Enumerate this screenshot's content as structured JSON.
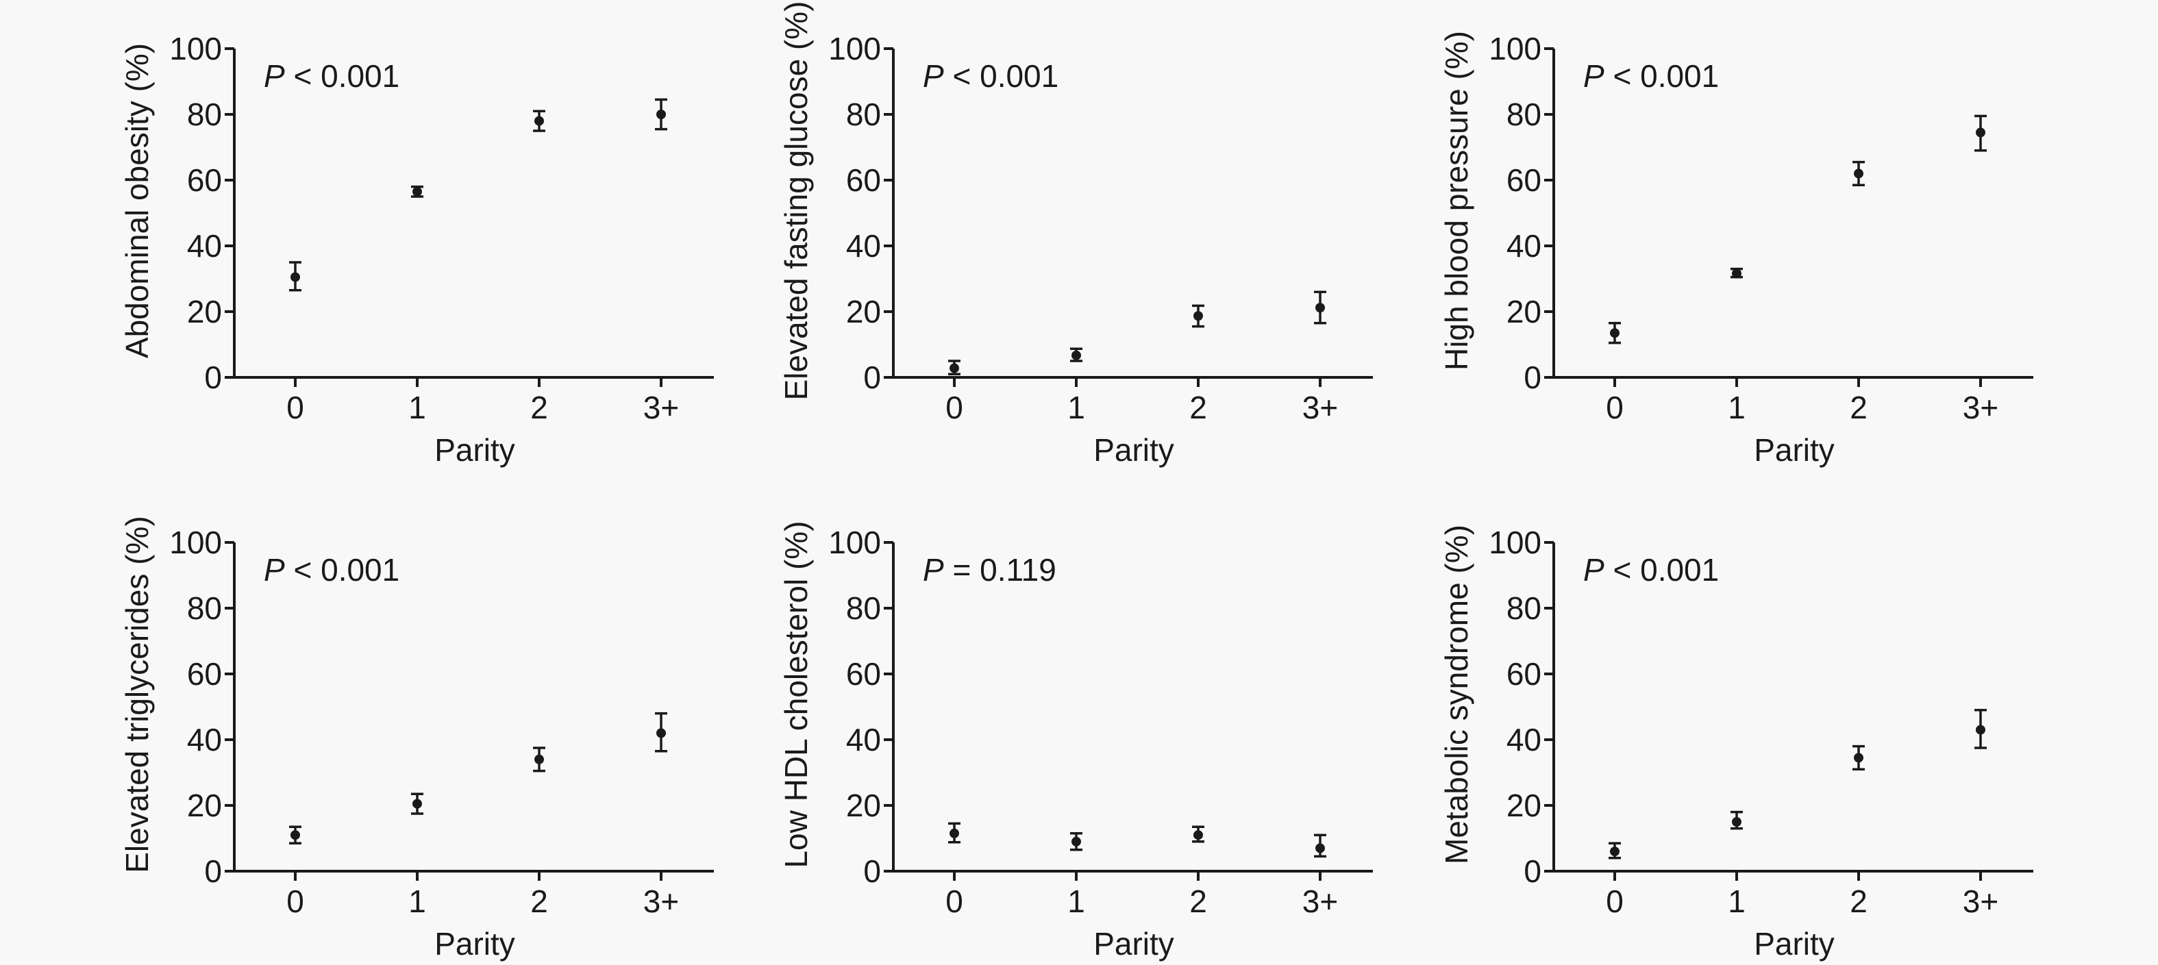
{
  "chart_data": [
    {
      "type": "scatter",
      "ylabel": "Abdominal obesity (%)",
      "xlabel": "Parity",
      "categories": [
        "0",
        "1",
        "2",
        "3+"
      ],
      "yticks": [
        "0",
        "20",
        "40",
        "60",
        "80",
        "100"
      ],
      "ylim": [
        0,
        100
      ],
      "p_prefix": "P",
      "p_rest": " < 0.001",
      "values": [
        30.5,
        56.5,
        78,
        80
      ],
      "lower": [
        26.5,
        55,
        75,
        75.5
      ],
      "upper": [
        35,
        58,
        81,
        84.5
      ]
    },
    {
      "type": "scatter",
      "ylabel": "Elevated fasting glucose (%)",
      "xlabel": "Parity",
      "categories": [
        "0",
        "1",
        "2",
        "3+"
      ],
      "yticks": [
        "0",
        "20",
        "40",
        "60",
        "80",
        "100"
      ],
      "ylim": [
        0,
        100
      ],
      "p_prefix": "P",
      "p_rest": " < 0.001",
      "values": [
        2.8,
        6.7,
        18.7,
        21.2
      ],
      "lower": [
        1,
        5,
        15.5,
        16.5
      ],
      "upper": [
        5,
        8.7,
        21.8,
        26
      ]
    },
    {
      "type": "scatter",
      "ylabel": "High blood pressure (%)",
      "xlabel": "Parity",
      "categories": [
        "0",
        "1",
        "2",
        "3+"
      ],
      "yticks": [
        "0",
        "20",
        "40",
        "60",
        "80",
        "100"
      ],
      "ylim": [
        0,
        100
      ],
      "p_prefix": "P",
      "p_rest": " < 0.001",
      "values": [
        13.5,
        31.6,
        62,
        74.5
      ],
      "lower": [
        10.5,
        30.5,
        58.5,
        69
      ],
      "upper": [
        16.5,
        33,
        65.5,
        79.5
      ]
    },
    {
      "type": "scatter",
      "ylabel": "Elevated triglycerides (%)",
      "xlabel": "Parity",
      "categories": [
        "0",
        "1",
        "2",
        "3+"
      ],
      "yticks": [
        "0",
        "20",
        "40",
        "60",
        "80",
        "100"
      ],
      "ylim": [
        0,
        100
      ],
      "p_prefix": "P",
      "p_rest": " < 0.001",
      "values": [
        11,
        20.5,
        34,
        42
      ],
      "lower": [
        8.5,
        17.5,
        30.5,
        36.5
      ],
      "upper": [
        13.5,
        23.5,
        37.5,
        48
      ]
    },
    {
      "type": "scatter",
      "ylabel": "Low HDL cholesterol (%)",
      "xlabel": "Parity",
      "categories": [
        "0",
        "1",
        "2",
        "3+"
      ],
      "yticks": [
        "0",
        "20",
        "40",
        "60",
        "80",
        "100"
      ],
      "ylim": [
        0,
        100
      ],
      "p_prefix": "P",
      "p_rest": " = 0.119",
      "values": [
        11.5,
        9,
        11,
        7
      ],
      "lower": [
        8.8,
        6.5,
        9,
        4.5
      ],
      "upper": [
        14.5,
        11.5,
        13.5,
        11
      ]
    },
    {
      "type": "scatter",
      "ylabel": "Metabolic syndrome (%)",
      "xlabel": "Parity",
      "categories": [
        "0",
        "1",
        "2",
        "3+"
      ],
      "yticks": [
        "0",
        "20",
        "40",
        "60",
        "80",
        "100"
      ],
      "ylim": [
        0,
        100
      ],
      "p_prefix": "P",
      "p_rest": " < 0.001",
      "values": [
        6,
        15,
        34.5,
        43
      ],
      "lower": [
        4,
        13,
        31,
        37.5
      ],
      "upper": [
        8.5,
        18,
        38,
        49
      ]
    }
  ]
}
